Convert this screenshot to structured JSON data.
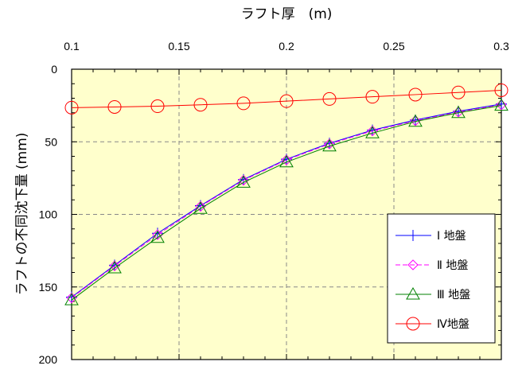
{
  "chart_data": {
    "type": "line",
    "xlabel": "ラフト厚　(m)",
    "ylabel": "ラフトの不同沈下量 (mm)",
    "xlim": [
      0.1,
      0.3
    ],
    "ylim": [
      0,
      200
    ],
    "y_inverted": true,
    "x_axis_position": "top",
    "x_ticks": [
      "0.1",
      "0.15",
      "0.2",
      "0.25",
      "0.3"
    ],
    "y_ticks": [
      "0",
      "50",
      "100",
      "150",
      "200"
    ],
    "grid": true,
    "legend_position": "bottom-right",
    "plot_background": "#ffffcc",
    "x": [
      0.1,
      0.12,
      0.14,
      0.16,
      0.18,
      0.2,
      0.22,
      0.24,
      0.26,
      0.28,
      0.3
    ],
    "series": [
      {
        "name": "Ⅰ 地盤",
        "color": "#0000ff",
        "marker": "plus",
        "dash": "solid",
        "values": [
          157,
          135,
          113,
          94,
          76,
          62,
          51,
          42,
          35,
          29,
          24
        ]
      },
      {
        "name": "Ⅱ 地盤",
        "color": "#ff00ff",
        "marker": "diamond",
        "dash": "dashed",
        "values": [
          157.5,
          135.5,
          114,
          94.5,
          76.5,
          62.5,
          51.5,
          42.5,
          35.5,
          29.5,
          24.5
        ]
      },
      {
        "name": "Ⅲ 地盤",
        "color": "#008000",
        "marker": "triangle",
        "dash": "solid",
        "values": [
          159,
          137,
          116,
          96,
          78,
          64,
          53,
          44,
          36,
          30,
          25
        ]
      },
      {
        "name": "Ⅳ地盤",
        "color": "#ff0000",
        "marker": "circle",
        "dash": "solid",
        "values": [
          26.5,
          26,
          25.5,
          24.5,
          23.5,
          22,
          20.5,
          19,
          17.5,
          16,
          14.5
        ]
      }
    ]
  }
}
